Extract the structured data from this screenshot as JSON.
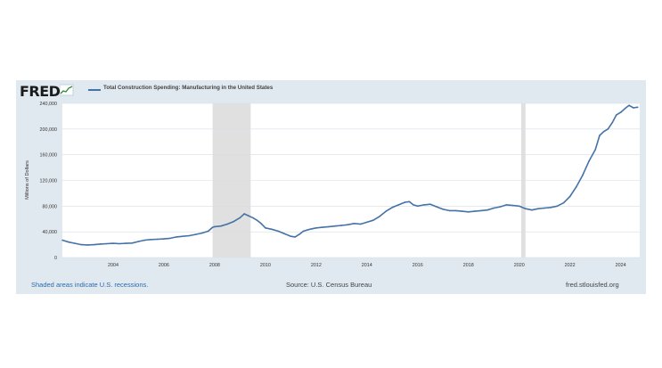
{
  "header": {
    "logo_text": "FRED",
    "logo_icon": "fred-graph-icon",
    "series_title": "Total Construction Spending: Manufacturing in the United States"
  },
  "footer": {
    "recession_note": "Shaded areas indicate U.S. recessions.",
    "source": "Source: U.S. Census Bureau",
    "site": "fred.stlouisfed.org"
  },
  "colors": {
    "line": "#4572a7",
    "recession": "#e0e0e0",
    "frame": "#e1e9f0",
    "grid": "#d6dde5"
  },
  "chart_data": {
    "type": "line",
    "title": "Total Construction Spending: Manufacturing in the United States",
    "ylabel": "Millions of Dollars",
    "xlabel": "",
    "xlim": [
      2002.0,
      2024.75
    ],
    "ylim": [
      0,
      240000
    ],
    "grid": "horizontal",
    "legend": "top-left",
    "yticks": [
      0,
      40000,
      80000,
      120000,
      160000,
      200000,
      240000
    ],
    "ytick_labels": [
      "0",
      "40,000",
      "80,000",
      "120,000",
      "160,000",
      "200,000",
      "240,000"
    ],
    "xticks": [
      2004,
      2006,
      2008,
      2010,
      2012,
      2014,
      2016,
      2018,
      2020,
      2022,
      2024
    ],
    "xtick_labels": [
      "2004",
      "2006",
      "2008",
      "2010",
      "2012",
      "2014",
      "2016",
      "2018",
      "2020",
      "2022",
      "2024"
    ],
    "recessions": [
      [
        2007.92,
        2009.42
      ],
      [
        2020.08,
        2020.25
      ]
    ],
    "series": [
      {
        "x": [
          2002.0,
          2002.25,
          2002.5,
          2002.75,
          2003.0,
          2003.25,
          2003.5,
          2003.75,
          2004.0,
          2004.25,
          2004.5,
          2004.75,
          2005.0,
          2005.25,
          2005.5,
          2005.75,
          2006.0,
          2006.25,
          2006.5,
          2006.75,
          2007.0,
          2007.25,
          2007.5,
          2007.75,
          2007.92,
          2008.0,
          2008.25,
          2008.5,
          2008.75,
          2009.0,
          2009.17,
          2009.33,
          2009.5,
          2009.67,
          2009.83,
          2010.0,
          2010.25,
          2010.5,
          2010.75,
          2011.0,
          2011.17,
          2011.33,
          2011.5,
          2011.75,
          2012.0,
          2012.25,
          2012.5,
          2012.75,
          2013.0,
          2013.25,
          2013.5,
          2013.75,
          2014.0,
          2014.25,
          2014.5,
          2014.75,
          2015.0,
          2015.25,
          2015.5,
          2015.67,
          2015.83,
          2016.0,
          2016.25,
          2016.5,
          2016.75,
          2017.0,
          2017.25,
          2017.5,
          2017.75,
          2018.0,
          2018.25,
          2018.5,
          2018.75,
          2019.0,
          2019.25,
          2019.5,
          2019.75,
          2020.0,
          2020.25,
          2020.5,
          2020.75,
          2021.0,
          2021.25,
          2021.5,
          2021.75,
          2022.0,
          2022.25,
          2022.5,
          2022.75,
          2023.0,
          2023.17,
          2023.33,
          2023.5,
          2023.67,
          2023.83,
          2024.0,
          2024.17,
          2024.33,
          2024.5,
          2024.67
        ],
        "values": [
          27000,
          24000,
          22000,
          20000,
          19500,
          20000,
          21000,
          21500,
          22000,
          21500,
          22000,
          22500,
          25000,
          27000,
          28000,
          28500,
          29000,
          30000,
          32000,
          33000,
          34000,
          36000,
          38000,
          41000,
          47000,
          48000,
          49000,
          52000,
          56000,
          62000,
          68000,
          65000,
          62000,
          58000,
          53000,
          46000,
          44000,
          41000,
          37000,
          33000,
          32000,
          36000,
          41000,
          44000,
          46000,
          47000,
          48000,
          49000,
          50000,
          51000,
          53000,
          52000,
          55000,
          58000,
          64000,
          72000,
          78000,
          82000,
          86000,
          87000,
          82000,
          80000,
          82000,
          83000,
          79000,
          75000,
          73000,
          73000,
          72000,
          71000,
          72000,
          73000,
          74000,
          77000,
          79000,
          82000,
          81000,
          80000,
          76000,
          74000,
          76000,
          77000,
          78000,
          80000,
          85000,
          95000,
          110000,
          128000,
          150000,
          168000,
          190000,
          196000,
          200000,
          210000,
          222000,
          226000,
          232000,
          237000,
          233000,
          234000
        ]
      }
    ]
  }
}
